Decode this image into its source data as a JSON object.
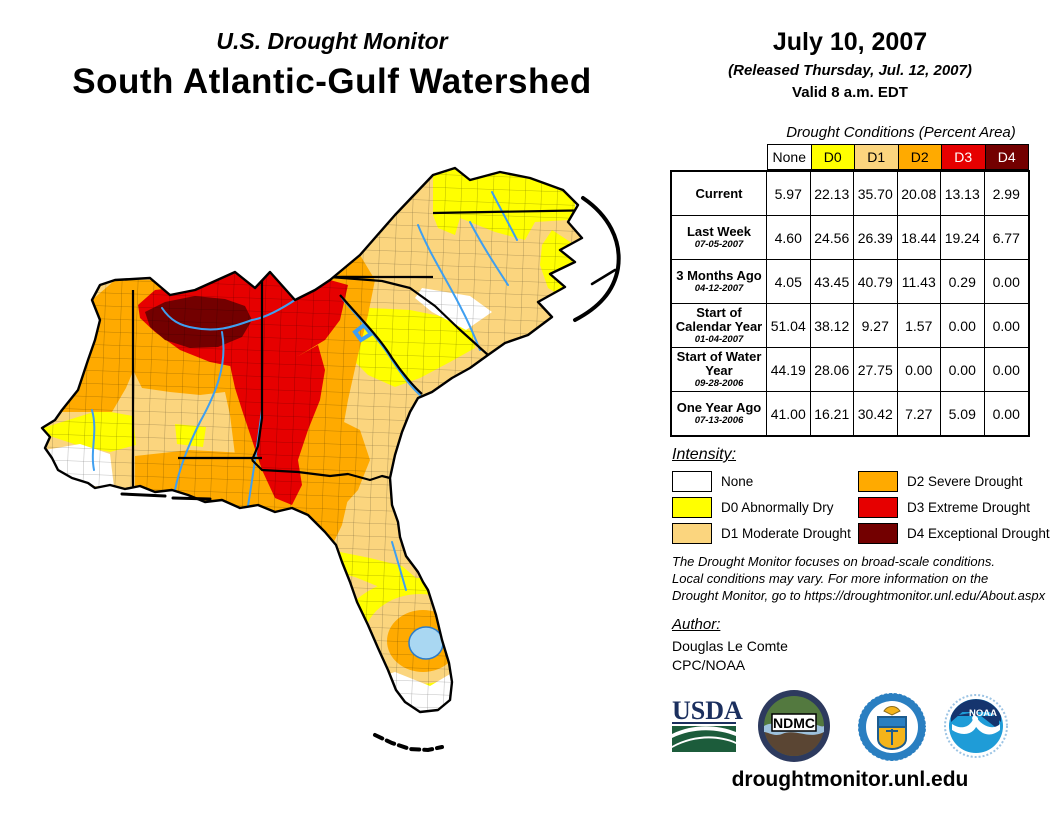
{
  "header": {
    "supertitle": "U.S. Drought Monitor",
    "title": "South Atlantic-Gulf Watershed"
  },
  "date_block": {
    "date": "July 10, 2007",
    "released": "(Released Thursday, Jul. 12, 2007)",
    "valid": "Valid 8 a.m. EDT"
  },
  "table": {
    "caption": "Drought Conditions (Percent Area)",
    "columns": [
      "None",
      "D0",
      "D1",
      "D2",
      "D3",
      "D4"
    ],
    "column_colors": [
      "#FFFFFF",
      "#FFFF00",
      "#FBD57E",
      "#FFAA00",
      "#E60000",
      "#730000"
    ],
    "rows": [
      {
        "label": "Current",
        "sub": "",
        "values": [
          "5.97",
          "22.13",
          "35.70",
          "20.08",
          "13.13",
          "2.99"
        ]
      },
      {
        "label": "Last Week",
        "sub": "07-05-2007",
        "values": [
          "4.60",
          "24.56",
          "26.39",
          "18.44",
          "19.24",
          "6.77"
        ]
      },
      {
        "label": "3 Months Ago",
        "sub": "04-12-2007",
        "values": [
          "4.05",
          "43.45",
          "40.79",
          "11.43",
          "0.29",
          "0.00"
        ]
      },
      {
        "label": "Start of Calendar Year",
        "sub": "01-04-2007",
        "values": [
          "51.04",
          "38.12",
          "9.27",
          "1.57",
          "0.00",
          "0.00"
        ]
      },
      {
        "label": "Start of Water Year",
        "sub": "09-28-2006",
        "values": [
          "44.19",
          "28.06",
          "27.75",
          "0.00",
          "0.00",
          "0.00"
        ]
      },
      {
        "label": "One Year Ago",
        "sub": "07-13-2006",
        "values": [
          "41.00",
          "16.21",
          "30.42",
          "7.27",
          "5.09",
          "0.00"
        ]
      }
    ]
  },
  "legend": {
    "heading": "Intensity:",
    "items": [
      {
        "label": "None",
        "color": "#FFFFFF"
      },
      {
        "label": "D0 Abnormally Dry",
        "color": "#FFFF00"
      },
      {
        "label": "D1 Moderate Drought",
        "color": "#FBD57E"
      },
      {
        "label": "D2 Severe Drought",
        "color": "#FFAA00"
      },
      {
        "label": "D3 Extreme Drought",
        "color": "#E60000"
      },
      {
        "label": "D4 Exceptional Drought",
        "color": "#730000"
      }
    ]
  },
  "disclaimer": {
    "lines": [
      "The Drought Monitor focuses on broad-scale conditions.",
      "Local conditions may vary. For more information on the",
      "Drought Monitor, go to https://droughtmonitor.unl.edu/About.aspx"
    ]
  },
  "author": {
    "heading": "Author:",
    "name": "Douglas Le Comte",
    "org": "CPC/NOAA"
  },
  "logos": {
    "usda": "USDA",
    "ndmc": "NDMC",
    "noaa": "NOAA"
  },
  "footer": {
    "url": "droughtmonitor.unl.edu"
  },
  "map": {
    "colors": {
      "none": "#FFFFFF",
      "d0": "#FFFF00",
      "d1": "#FBD57E",
      "d2": "#FFAA00",
      "d3": "#E60000",
      "d4": "#730000",
      "river": "#3F9FF0",
      "lake": "#A9D7F2"
    }
  }
}
